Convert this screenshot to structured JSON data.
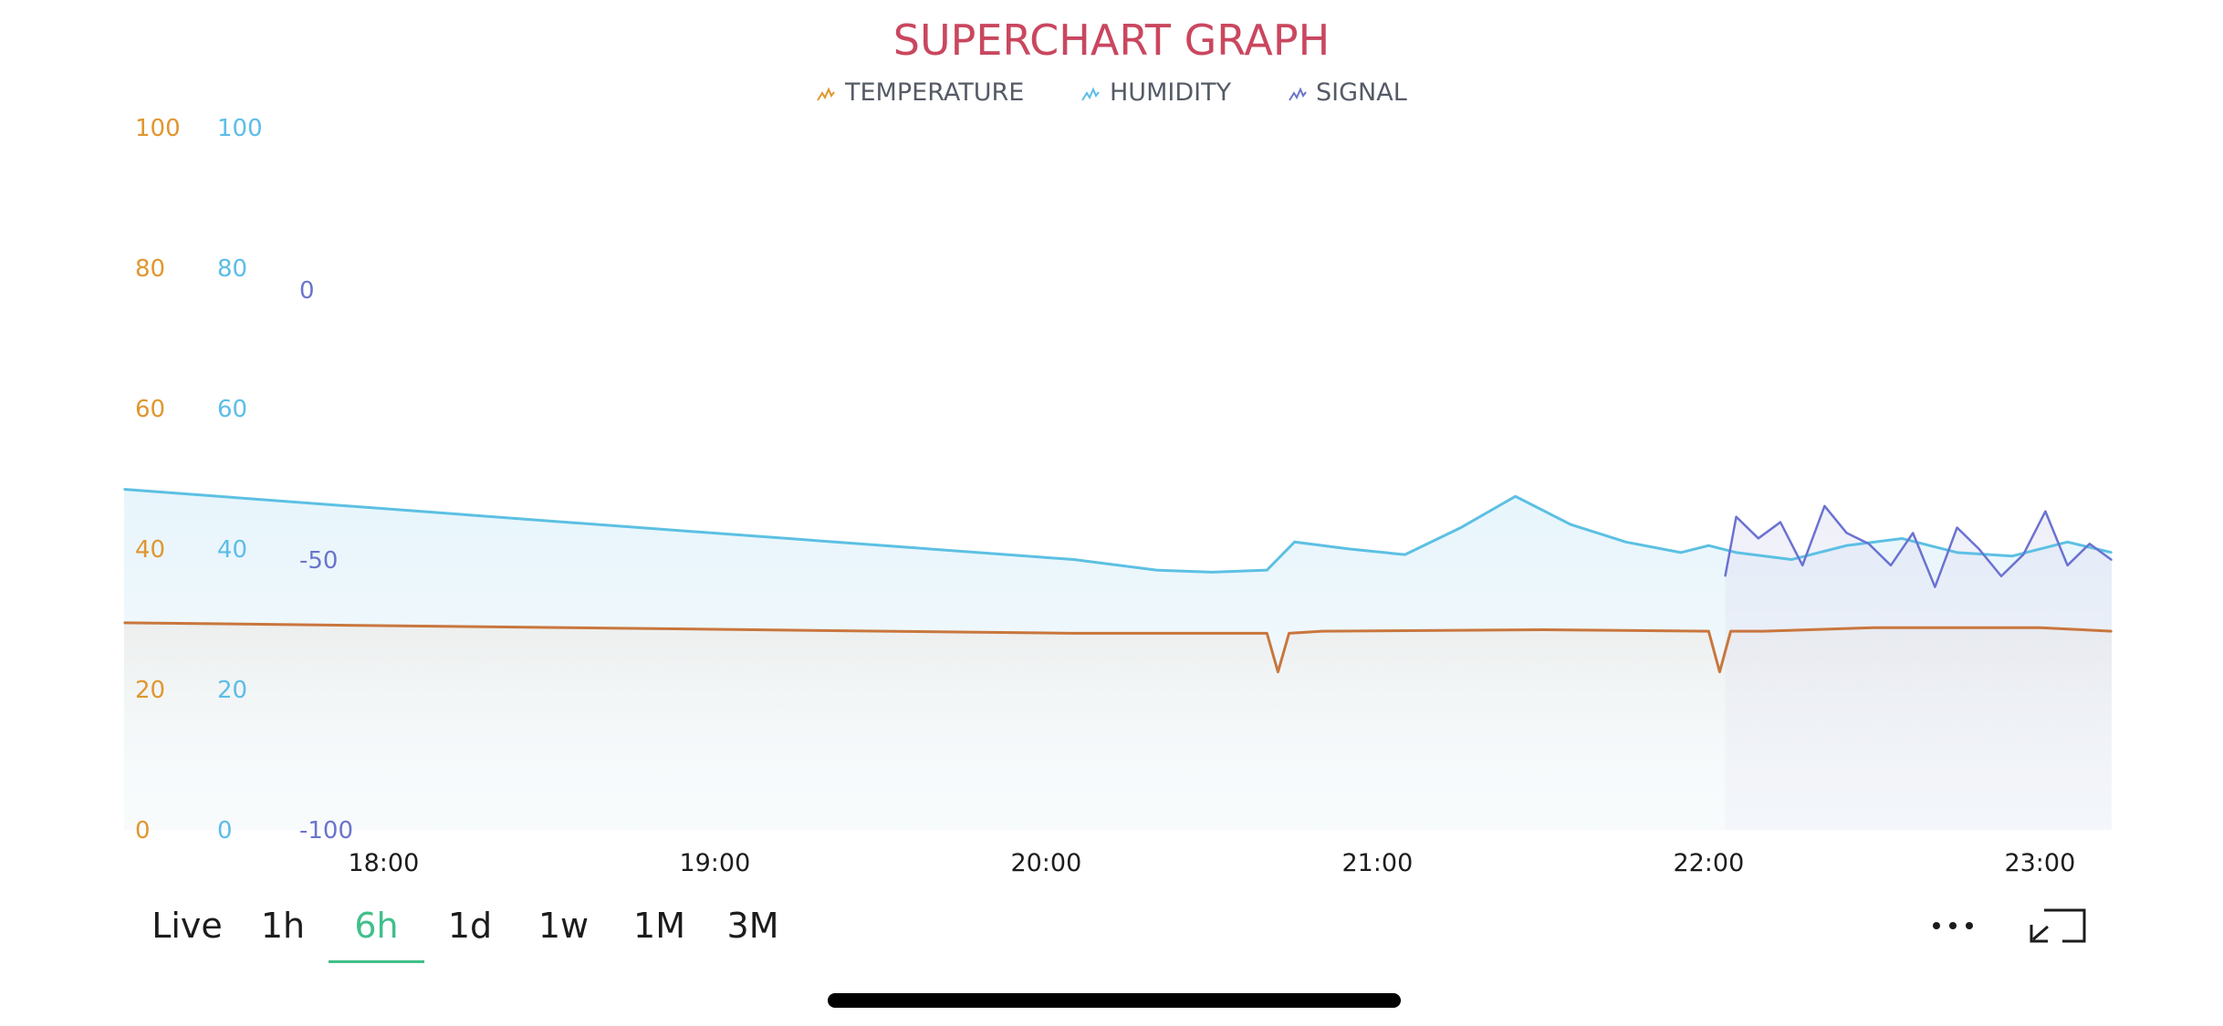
{
  "title": "SUPERCHART GRAPH",
  "colors": {
    "title": "#c9475f",
    "temperature": "#c9763d",
    "humidity": "#5cc0e3",
    "signal": "#6b72d1",
    "active_tab": "#3fbf8a",
    "temp_tick": "#e0962f",
    "hum_tick": "#5cbde8",
    "sig_tick": "#6a74cc"
  },
  "legend": [
    {
      "label": "TEMPERATURE",
      "icon": "temperature-series-icon"
    },
    {
      "label": "HUMIDITY",
      "icon": "humidity-series-icon"
    },
    {
      "label": "SIGNAL",
      "icon": "signal-series-icon"
    }
  ],
  "periods": [
    "Live",
    "1h",
    "6h",
    "1d",
    "1w",
    "1M",
    "3M"
  ],
  "active_period": "6h",
  "actions": {
    "more": "more-options-icon",
    "expand": "expand-icon"
  },
  "chart_data": {
    "type": "line",
    "title": "SUPERCHART GRAPH",
    "x_label": "",
    "x_ticks": [
      "18:00",
      "19:00",
      "20:00",
      "21:00",
      "22:00",
      "23:00"
    ],
    "x_range": [
      "17:13",
      "23:13"
    ],
    "legend_position": "top-center",
    "grid": false,
    "y_axes": [
      {
        "series": "TEMPERATURE",
        "range": [
          0,
          100
        ],
        "ticks": [
          0,
          20,
          40,
          60,
          80,
          100
        ]
      },
      {
        "series": "HUMIDITY",
        "range": [
          0,
          100
        ],
        "ticks": [
          0,
          20,
          40,
          60,
          80,
          100
        ]
      },
      {
        "series": "SIGNAL",
        "range": [
          -100,
          0
        ],
        "ticks": [
          -100,
          -50,
          0
        ]
      }
    ],
    "series": [
      {
        "name": "TEMPERATURE",
        "x": [
          "17:13",
          "20:05",
          "20:40",
          "20:42",
          "20:44",
          "20:50",
          "21:30",
          "22:00",
          "22:02",
          "22:04",
          "22:10",
          "22:30",
          "22:40",
          "23:00",
          "23:13"
        ],
        "values": [
          29.5,
          28.0,
          28.0,
          22.5,
          28.0,
          28.3,
          28.5,
          28.3,
          22.5,
          28.3,
          28.3,
          28.8,
          28.8,
          28.8,
          28.3
        ]
      },
      {
        "name": "HUMIDITY",
        "x": [
          "17:13",
          "18:30",
          "20:05",
          "20:20",
          "20:30",
          "20:40",
          "20:45",
          "20:55",
          "21:05",
          "21:15",
          "21:25",
          "21:35",
          "21:45",
          "21:55",
          "22:00",
          "22:05",
          "22:15",
          "22:25",
          "22:35",
          "22:45",
          "22:55",
          "23:05",
          "23:13"
        ],
        "values": [
          48.5,
          44.0,
          38.5,
          37.0,
          36.7,
          37.0,
          41.0,
          40.0,
          39.2,
          43.0,
          47.5,
          43.5,
          41.0,
          39.5,
          40.5,
          39.5,
          38.5,
          40.5,
          41.5,
          39.5,
          39.0,
          41.0,
          39.5
        ]
      },
      {
        "name": "SIGNAL",
        "x": [
          "22:03",
          "22:05",
          "22:09",
          "22:13",
          "22:17",
          "22:21",
          "22:25",
          "22:29",
          "22:33",
          "22:37",
          "22:41",
          "22:45",
          "22:49",
          "22:53",
          "22:57",
          "23:01",
          "23:05",
          "23:09",
          "23:13"
        ],
        "values": [
          -53,
          -42,
          -46,
          -43,
          -51,
          -40,
          -45,
          -47,
          -51,
          -45,
          -55,
          -44,
          -48,
          -53,
          -49,
          -41,
          -51,
          -47,
          -50
        ]
      }
    ]
  }
}
